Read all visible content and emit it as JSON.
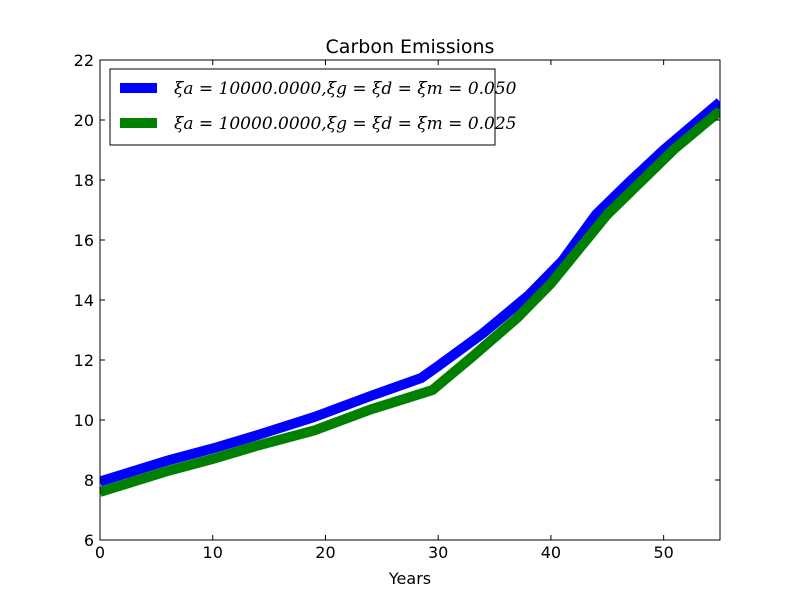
{
  "chart_data": {
    "type": "line",
    "title": "Carbon Emissions",
    "xlabel": "Years",
    "ylabel": "",
    "xlim": [
      0,
      55
    ],
    "ylim": [
      6,
      22
    ],
    "xticks": [
      0,
      10,
      20,
      30,
      40,
      50
    ],
    "yticks": [
      6,
      8,
      10,
      12,
      14,
      16,
      18,
      20,
      22
    ],
    "grid": false,
    "legend_position": "top-left",
    "series": [
      {
        "name": "ξa = 10000.0000,ξg = ξd = ξm = 0.050",
        "color": "#0000ff",
        "x": [
          0,
          3,
          6,
          10,
          14,
          19,
          24,
          28.5,
          30,
          34,
          38,
          41,
          44,
          47,
          50,
          55
        ],
        "y": [
          7.95,
          8.3,
          8.65,
          9.05,
          9.5,
          10.1,
          10.8,
          11.4,
          11.8,
          12.9,
          14.15,
          15.3,
          16.85,
          17.95,
          19.0,
          20.6
        ]
      },
      {
        "name": "ξa = 10000.0000,ξg = ξd = ξm = 0.025",
        "color": "#008000",
        "x": [
          0,
          3,
          6,
          10,
          14,
          19,
          24,
          29.5,
          33,
          37,
          40,
          42.5,
          45,
          48,
          51,
          55
        ],
        "y": [
          7.6,
          7.95,
          8.3,
          8.7,
          9.15,
          9.65,
          10.35,
          11.0,
          12.1,
          13.4,
          14.55,
          15.7,
          16.85,
          17.95,
          19.05,
          20.3
        ]
      }
    ]
  }
}
